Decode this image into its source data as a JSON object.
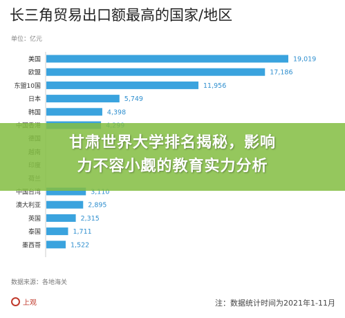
{
  "chart_data": {
    "type": "bar",
    "orientation": "horizontal",
    "title": "长三角贸易出口额最高的国家/地区",
    "unit": "单位：亿元",
    "categories": [
      "美国",
      "欧盟",
      "东盟10国",
      "日本",
      "韩国",
      "中国香港",
      "德国",
      "越南",
      "印度",
      "荷兰",
      "中国台湾",
      "澳大利亚",
      "英国",
      "泰国",
      "墨西哥"
    ],
    "values": [
      19019,
      17186,
      11956,
      5749,
      4398,
      4299,
      null,
      null,
      null,
      null,
      3110,
      2895,
      2315,
      1711,
      1522
    ],
    "value_labels": [
      "19,019",
      "17,186",
      "11,956",
      "5,749",
      "4,398",
      "4,299",
      "",
      "",
      "",
      "",
      "3,110",
      "2,895",
      "2,315",
      "1,711",
      "1,522"
    ],
    "xlim": [
      0,
      19019
    ],
    "bar_color": "#3aa3de",
    "source": "数据来源：各地海关",
    "note": "注：数据统计时间为2021年1-11月"
  },
  "banner": {
    "line1": "甘肃世界大学排名揭秘，影响",
    "line2": "力不容小觑的教育实力分析",
    "color": "#84be42"
  },
  "logo": {
    "text": "上观",
    "color": "#c0392b"
  }
}
